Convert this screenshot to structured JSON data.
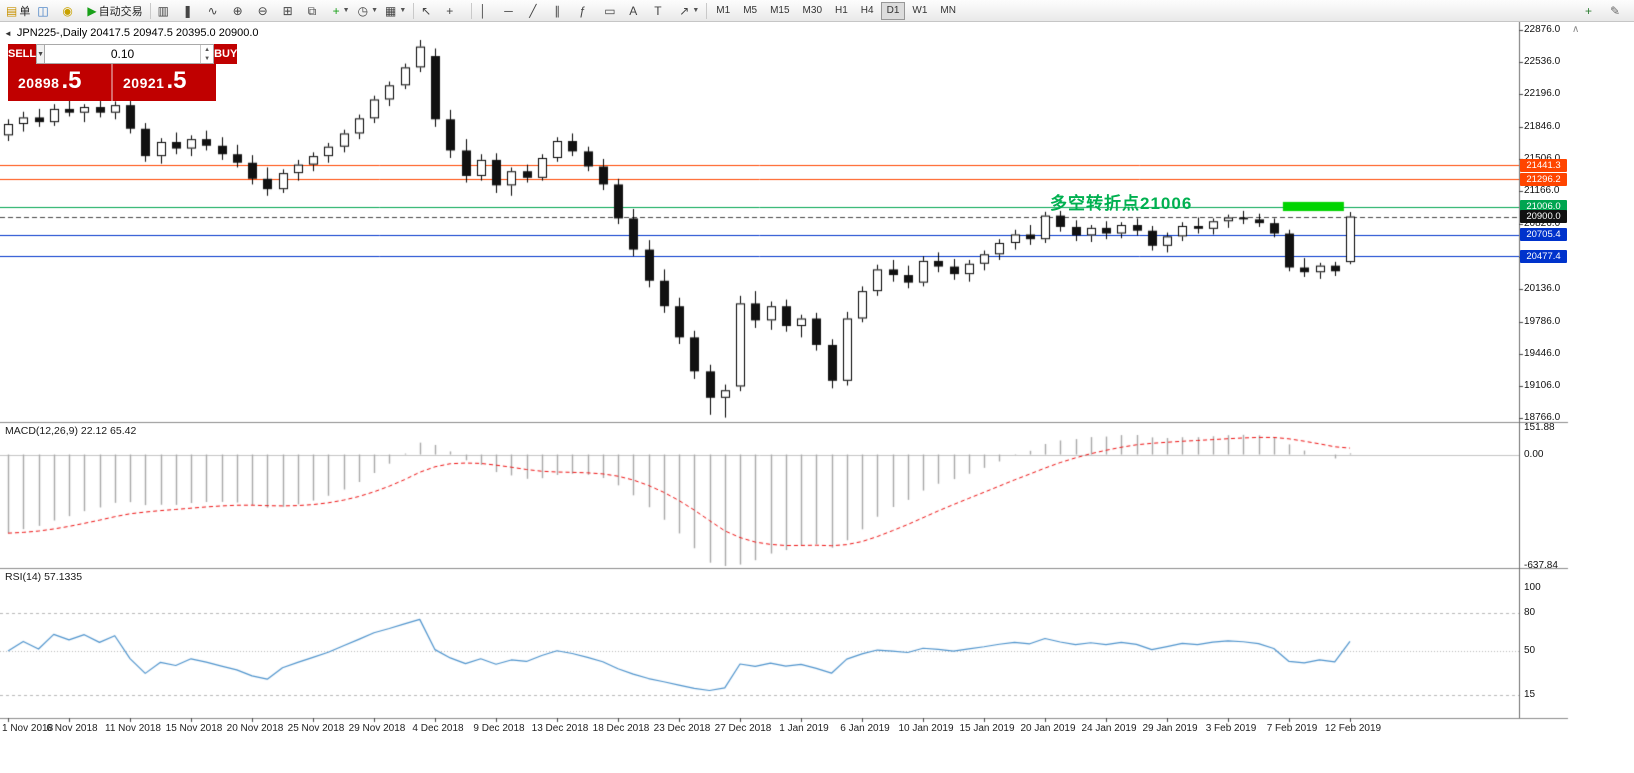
{
  "icons": {
    "collapse_left": "◄",
    "dropdown": "▼",
    "spin_up": "▲",
    "spin_down": "▼",
    "scroll_up": "∧"
  },
  "colors": {
    "line_orange": "#ff4500",
    "line_green": "#00a550",
    "line_blue": "#0033cc",
    "current_line": "#444444",
    "current_tag": "#111111",
    "rect_green": "#00d400",
    "macd_hist": "#a8a8a8",
    "macd_signal": "#ee1111",
    "rsi_line": "#4f94cd",
    "candle_up": "#ffffff",
    "candle_down": "#111111",
    "panel_red": "#c00000"
  },
  "toolbar": {
    "items": [
      {
        "n": "new-order",
        "g": "▤",
        "c": "#c89200",
        "l": "单"
      },
      {
        "n": "chart-window",
        "g": "◫",
        "c": "#3a78c2"
      },
      {
        "n": "profile",
        "g": "◉",
        "c": "#c8a200"
      },
      {
        "n": "auto-trading",
        "g": "▶",
        "c": "#18a018",
        "l": "自动交易"
      },
      {
        "sep": true
      },
      {
        "n": "bar-chart",
        "g": "▥",
        "c": "#444444"
      },
      {
        "n": "candlestick-chart",
        "g": "❚",
        "c": "#444444"
      },
      {
        "n": "line-chart",
        "g": "∿",
        "c": "#444444"
      },
      {
        "n": "zoom-in",
        "g": "⊕",
        "c": "#444444"
      },
      {
        "n": "zoom-out",
        "g": "⊖",
        "c": "#444444"
      },
      {
        "n": "tile-windows",
        "g": "⊞",
        "c": "#444444"
      },
      {
        "n": "cascade-windows",
        "g": "⧉",
        "c": "#444444"
      },
      {
        "n": "indicators",
        "g": "+",
        "c": "#18a018",
        "dd": true
      },
      {
        "n": "periods",
        "g": "◷",
        "c": "#444444",
        "dd": true
      },
      {
        "n": "templates",
        "g": "▦",
        "c": "#444444",
        "dd": true
      },
      {
        "sep": true
      },
      {
        "n": "cursor",
        "g": "↖",
        "c": "#444444"
      },
      {
        "n": "crosshair",
        "g": "+",
        "c": "#444444"
      },
      {
        "sep": true
      },
      {
        "n": "vertical-line",
        "g": "│",
        "c": "#444444"
      },
      {
        "n": "horizontal-line",
        "g": "─",
        "c": "#444444"
      },
      {
        "n": "trendline",
        "g": "╱",
        "c": "#444444"
      },
      {
        "n": "equidistant-channel",
        "g": "∥",
        "c": "#444444"
      },
      {
        "n": "fibonacci",
        "g": "ƒ",
        "c": "#444444"
      },
      {
        "n": "shapes",
        "g": "▭",
        "c": "#444444"
      },
      {
        "n": "text",
        "g": "A",
        "c": "#444444"
      },
      {
        "n": "text-label",
        "g": "T",
        "c": "#444444"
      },
      {
        "n": "arrows",
        "g": "↗",
        "c": "#444444",
        "dd": true
      },
      {
        "sep": true
      }
    ],
    "right_items": [
      {
        "n": "new-chart",
        "g": "+",
        "c": "#2e7d32"
      },
      {
        "n": "edit",
        "g": "✎",
        "c": "#666666"
      }
    ],
    "timeframes": [
      "M1",
      "M5",
      "M15",
      "M30",
      "H1",
      "H4",
      "D1",
      "W1",
      "MN"
    ],
    "active_timeframe": "D1"
  },
  "chart": {
    "title": "JPN225-,Daily 20417.5 20947.5 20395.0 20900.0",
    "annotation": "多空转折点21006",
    "hlines": [
      {
        "price": 21441.3,
        "label": "21441.3",
        "color_key": "line_orange"
      },
      {
        "price": 21296.2,
        "label": "21296.2",
        "color_key": "line_orange"
      },
      {
        "price": 21006.0,
        "label": "21006.0",
        "color_key": "line_green"
      },
      {
        "price": 20705.4,
        "label": "20705.4",
        "color_key": "line_blue"
      },
      {
        "price": 20477.4,
        "label": "20477.4",
        "color_key": "line_blue"
      }
    ],
    "current_price": {
      "price": 20900.0,
      "label": "20900.0"
    },
    "rectangle": {
      "from_index": 83.6,
      "to_index": 87.6,
      "price_top": 21055,
      "price_bottom": 20958,
      "color_key": "rect_green"
    }
  },
  "one_click": {
    "sell_label": "SELL",
    "buy_label": "BUY",
    "volume": "0.10",
    "sell_price_main": "20898",
    "sell_price_pips": ".5",
    "buy_price_main": "20921",
    "buy_price_pips": ".5"
  },
  "price_axis": {
    "labels": [
      "22876.0",
      "22536.0",
      "22196.0",
      "21846.0",
      "21506.0",
      "21166.0",
      "20826.0",
      "20476.0",
      "20136.0",
      "19786.0",
      "19446.0",
      "19106.0",
      "18766.0"
    ]
  },
  "macd": {
    "label": "MACD(12,26,9) 22.12 65.42",
    "axis_labels": [
      "151.88",
      "0.00",
      "-637.84"
    ],
    "max": 151.88,
    "min": -637.84,
    "params": [
      12,
      26,
      9
    ]
  },
  "rsi": {
    "label": "RSI(14) 57.1335",
    "axis_labels": [
      "100",
      "80",
      "50",
      "15"
    ],
    "levels": [
      80,
      50,
      15
    ],
    "period": 14
  },
  "chart_data": {
    "type": "candlestick",
    "symbol": "JPN225-",
    "timeframe": "Daily",
    "y_max": 22876.0,
    "y_min": 18766.0,
    "last_ohlc": [
      20417.5,
      20947.5,
      20395.0,
      20900.0
    ],
    "ohlc": [
      [
        21760,
        21930,
        21700,
        21880
      ],
      [
        21880,
        22010,
        21800,
        21950
      ],
      [
        21950,
        22040,
        21850,
        21900
      ],
      [
        21900,
        22090,
        21860,
        22040
      ],
      [
        22040,
        22140,
        21960,
        22000
      ],
      [
        22000,
        22090,
        21900,
        22060
      ],
      [
        22060,
        22130,
        21950,
        22000
      ],
      [
        22000,
        22120,
        21930,
        22080
      ],
      [
        22080,
        22130,
        21780,
        21830
      ],
      [
        21830,
        21890,
        21480,
        21540
      ],
      [
        21540,
        21730,
        21460,
        21690
      ],
      [
        21690,
        21790,
        21560,
        21620
      ],
      [
        21620,
        21760,
        21540,
        21720
      ],
      [
        21720,
        21810,
        21600,
        21650
      ],
      [
        21650,
        21740,
        21500,
        21560
      ],
      [
        21560,
        21660,
        21420,
        21470
      ],
      [
        21470,
        21550,
        21240,
        21300
      ],
      [
        21300,
        21420,
        21120,
        21190
      ],
      [
        21190,
        21400,
        21150,
        21360
      ],
      [
        21360,
        21500,
        21280,
        21450
      ],
      [
        21450,
        21580,
        21380,
        21540
      ],
      [
        21540,
        21680,
        21470,
        21640
      ],
      [
        21640,
        21820,
        21580,
        21780
      ],
      [
        21780,
        21980,
        21720,
        21940
      ],
      [
        21940,
        22180,
        21890,
        22140
      ],
      [
        22140,
        22330,
        22070,
        22290
      ],
      [
        22290,
        22520,
        22250,
        22480
      ],
      [
        22480,
        22770,
        22430,
        22700
      ],
      [
        22600,
        22680,
        21850,
        21930
      ],
      [
        21930,
        22030,
        21520,
        21600
      ],
      [
        21600,
        21720,
        21260,
        21330
      ],
      [
        21330,
        21560,
        21280,
        21500
      ],
      [
        21500,
        21570,
        21150,
        21230
      ],
      [
        21230,
        21420,
        21120,
        21380
      ],
      [
        21380,
        21450,
        21260,
        21310
      ],
      [
        21310,
        21560,
        21280,
        21520
      ],
      [
        21520,
        21740,
        21480,
        21700
      ],
      [
        21700,
        21780,
        21540,
        21590
      ],
      [
        21590,
        21640,
        21380,
        21430
      ],
      [
        21430,
        21510,
        21180,
        21240
      ],
      [
        21240,
        21300,
        20820,
        20880
      ],
      [
        20880,
        20980,
        20480,
        20550
      ],
      [
        20550,
        20650,
        20150,
        20220
      ],
      [
        20220,
        20340,
        19880,
        19950
      ],
      [
        19950,
        20040,
        19550,
        19620
      ],
      [
        19620,
        19690,
        19180,
        19260
      ],
      [
        19260,
        19330,
        18800,
        18980
      ],
      [
        18980,
        19120,
        18770,
        19060
      ],
      [
        19100,
        20060,
        19050,
        19980
      ],
      [
        19980,
        20110,
        19720,
        19800
      ],
      [
        19800,
        20000,
        19700,
        19950
      ],
      [
        19950,
        20020,
        19680,
        19740
      ],
      [
        19740,
        19860,
        19620,
        19820
      ],
      [
        19820,
        19880,
        19480,
        19540
      ],
      [
        19540,
        19600,
        19080,
        19160
      ],
      [
        19160,
        19890,
        19110,
        19820
      ],
      [
        19820,
        20160,
        19780,
        20110
      ],
      [
        20110,
        20390,
        20060,
        20340
      ],
      [
        20340,
        20440,
        20210,
        20280
      ],
      [
        20280,
        20380,
        20140,
        20200
      ],
      [
        20200,
        20480,
        20160,
        20430
      ],
      [
        20430,
        20520,
        20310,
        20370
      ],
      [
        20370,
        20450,
        20230,
        20290
      ],
      [
        20290,
        20440,
        20210,
        20400
      ],
      [
        20400,
        20540,
        20330,
        20500
      ],
      [
        20500,
        20660,
        20440,
        20620
      ],
      [
        20620,
        20760,
        20550,
        20710
      ],
      [
        20710,
        20810,
        20600,
        20660
      ],
      [
        20660,
        20950,
        20620,
        20910
      ],
      [
        20910,
        20960,
        20740,
        20790
      ],
      [
        20790,
        20860,
        20640,
        20700
      ],
      [
        20700,
        20810,
        20630,
        20780
      ],
      [
        20780,
        20850,
        20660,
        20720
      ],
      [
        20720,
        20840,
        20670,
        20810
      ],
      [
        20810,
        20880,
        20700,
        20750
      ],
      [
        20750,
        20800,
        20540,
        20590
      ],
      [
        20590,
        20730,
        20520,
        20690
      ],
      [
        20690,
        20840,
        20640,
        20800
      ],
      [
        20800,
        20890,
        20720,
        20770
      ],
      [
        20770,
        20880,
        20710,
        20850
      ],
      [
        20850,
        20920,
        20780,
        20890
      ],
      [
        20890,
        20960,
        20820,
        20870
      ],
      [
        20870,
        20930,
        20790,
        20830
      ],
      [
        20830,
        20880,
        20680,
        20720
      ],
      [
        20720,
        20760,
        20320,
        20360
      ],
      [
        20360,
        20460,
        20260,
        20310
      ],
      [
        20310,
        20410,
        20240,
        20380
      ],
      [
        20380,
        20420,
        20270,
        20320
      ],
      [
        20417.5,
        20947.5,
        20395.0,
        20900.0
      ]
    ],
    "x_labels": [
      [
        0,
        "1 Nov 2018"
      ],
      [
        4,
        "6 Nov 2018"
      ],
      [
        8,
        "11 Nov 2018"
      ],
      [
        12,
        "15 Nov 2018"
      ],
      [
        16,
        "20 Nov 2018"
      ],
      [
        20,
        "25 Nov 2018"
      ],
      [
        24,
        "29 Nov 2018"
      ],
      [
        28,
        "4 Dec 2018"
      ],
      [
        32,
        "9 Dec 2018"
      ],
      [
        36,
        "13 Dec 2018"
      ],
      [
        40,
        "18 Dec 2018"
      ],
      [
        44,
        "23 Dec 2018"
      ],
      [
        48,
        "27 Dec 2018"
      ],
      [
        52,
        "1 Jan 2019"
      ],
      [
        56,
        "6 Jan 2019"
      ],
      [
        60,
        "10 Jan 2019"
      ],
      [
        64,
        "15 Jan 2019"
      ],
      [
        68,
        "20 Jan 2019"
      ],
      [
        72,
        "24 Jan 2019"
      ],
      [
        76,
        "29 Jan 2019"
      ],
      [
        80,
        "3 Feb 2019"
      ],
      [
        84,
        "7 Feb 2019"
      ],
      [
        88,
        "12 Feb 2019"
      ]
    ]
  }
}
